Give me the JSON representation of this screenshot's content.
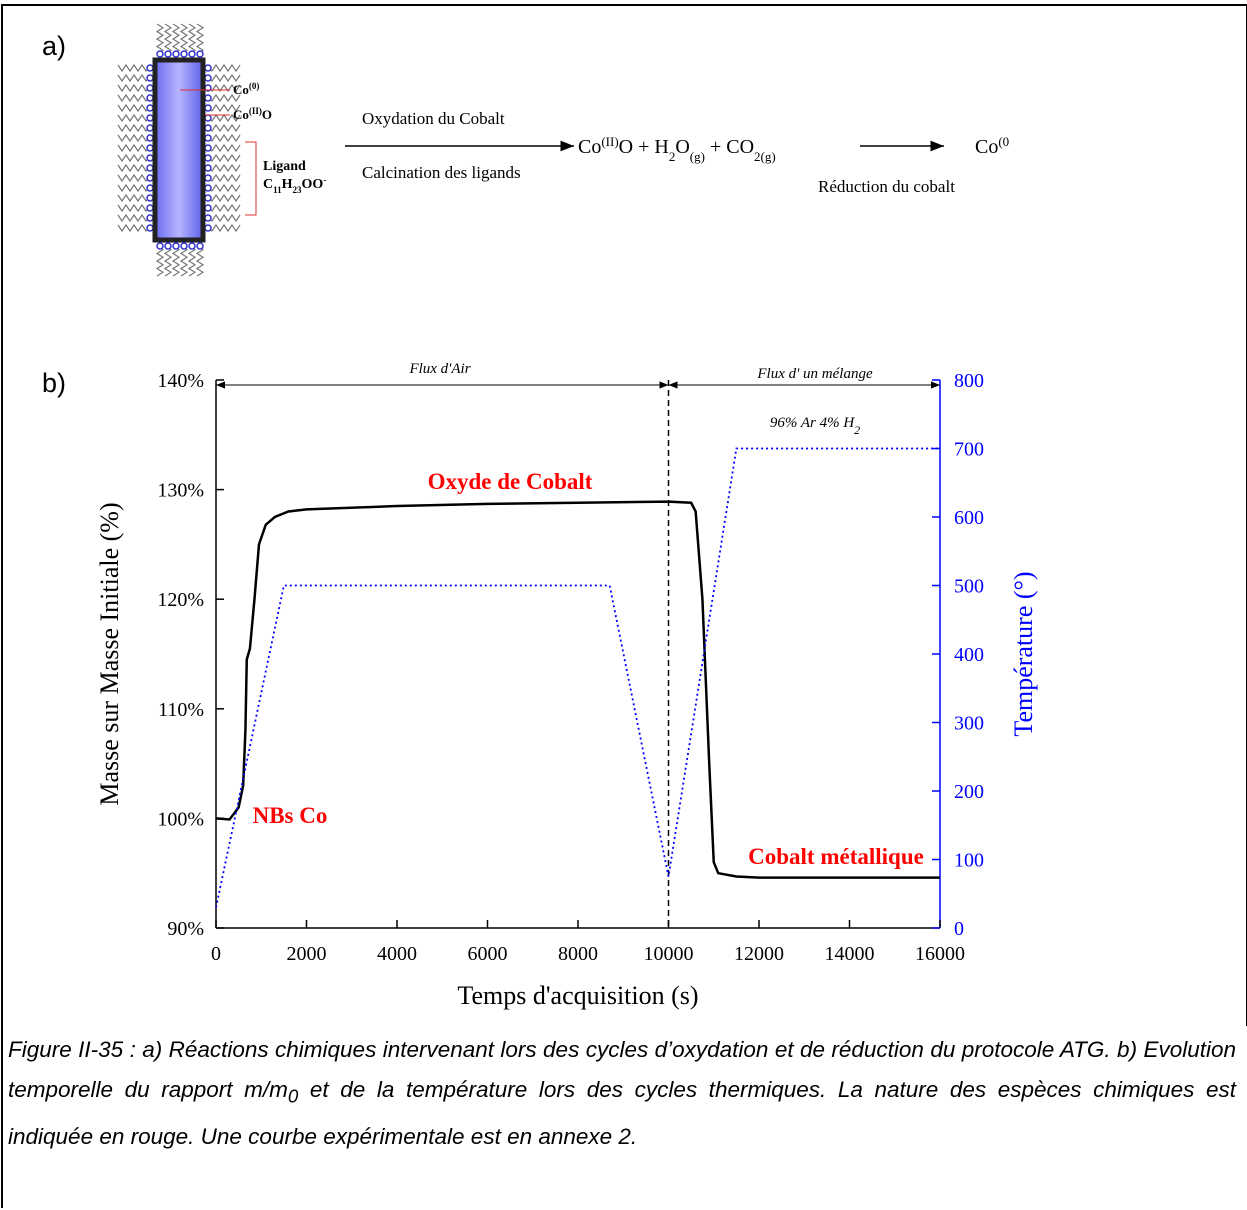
{
  "panel_a": {
    "label": "a)",
    "co0": [
      "Co",
      "(0)"
    ],
    "coiio": [
      "Co",
      "(II)",
      "O"
    ],
    "ligand": "Ligand",
    "ligand_formula": [
      "C",
      "11",
      "H",
      "23",
      "OO",
      "-"
    ],
    "arrow1_top": "Oxydation du Cobalt",
    "arrow1_bottom": "Calcination des ligands",
    "product": [
      "Co",
      "(II)",
      "O + H",
      "2",
      "O",
      "(g)",
      " + CO",
      "2(g)"
    ],
    "arrow2_bottom": "Réduction du cobalt",
    "final": [
      "Co",
      "(0"
    ]
  },
  "panel_b_label": "b)",
  "chart_data": {
    "type": "line",
    "xlabel": "Temps d'acquisition (s)",
    "ylabel": "Masse sur Masse Initiale (%)",
    "y2label": "Température (°)",
    "xlim": [
      0,
      16000
    ],
    "xticks": [
      0,
      2000,
      4000,
      6000,
      8000,
      10000,
      12000,
      14000,
      16000
    ],
    "ylim": [
      90,
      140
    ],
    "yticks": [
      {
        "value": 90,
        "label": "90%"
      },
      {
        "value": 100,
        "label": "100%"
      },
      {
        "value": 110,
        "label": "110%"
      },
      {
        "value": 120,
        "label": "120%"
      },
      {
        "value": 130,
        "label": "130%"
      },
      {
        "value": 140,
        "label": "140%"
      }
    ],
    "y2lim": [
      0,
      800
    ],
    "y2ticks": [
      0,
      100,
      200,
      300,
      400,
      500,
      600,
      700,
      800
    ],
    "grid": false,
    "divider_x": 10000,
    "series": [
      {
        "color": "#000000",
        "style": "solid",
        "x": [
          0,
          300,
          500,
          600,
          650,
          680,
          750,
          850,
          950,
          1100,
          1300,
          1600,
          2000,
          4000,
          6000,
          8000,
          10000,
          10500,
          10600,
          10750,
          10900,
          11000,
          11100,
          11500,
          12000,
          16000
        ],
        "values": [
          100,
          99.9,
          101,
          103,
          108,
          114.5,
          115.5,
          120,
          125,
          126.8,
          127.5,
          128,
          128.2,
          128.5,
          128.7,
          128.8,
          128.9,
          128.8,
          128,
          120,
          105,
          96,
          95,
          94.7,
          94.6,
          94.6
        ]
      },
      {
        "color": "#0000ff",
        "style": "dotted",
        "axis": "y2",
        "x": [
          0,
          1500,
          8700,
          10000,
          11500,
          16000
        ],
        "values": [
          30,
          500,
          500,
          75,
          700,
          700
        ]
      }
    ],
    "annotations": [
      {
        "text": [
          "Flux d'Air"
        ]
      },
      {
        "text": [
          "Flux d' un mélange"
        ]
      },
      {
        "text": [
          "96% Ar 4% H",
          "2"
        ]
      },
      {
        "text": [
          "Oxyde de Cobalt"
        ]
      },
      {
        "text": [
          "NBs Co"
        ]
      },
      {
        "text": [
          "Cobalt métallique"
        ]
      }
    ]
  },
  "caption": [
    "Figure II-35 : a) Réactions chimiques intervenant lors des cycles d’oxydation et de réduction du protocole ATG. b) Evolution temporelle du rapport m/m",
    "0",
    " et de la température lors des cycles thermiques. La nature des espèces chimiques est indiquée en rouge. Une courbe expérimentale est en annexe 2."
  ]
}
